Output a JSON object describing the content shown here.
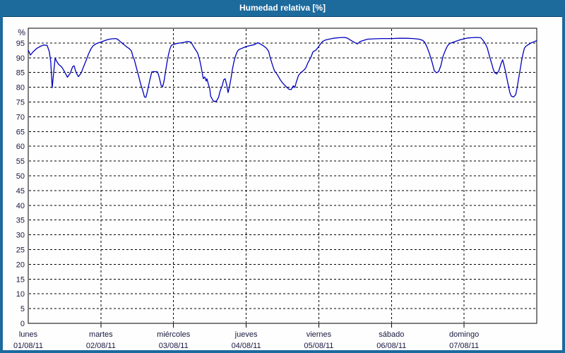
{
  "window": {
    "title": "Humedad relativa [%]"
  },
  "colors": {
    "titlebar_bg": "#1D6A9D",
    "frame": "#1D6A9D",
    "line": "#0000BE",
    "grid": "#000000",
    "axis": "#000000",
    "tick_label": "#17173F",
    "plot_bg": "#FEFEFE",
    "title_text": "#FFFFFF"
  },
  "chart_data": {
    "type": "line",
    "title": "Humedad relativa [%]",
    "ylabel": "%",
    "xlabel": "",
    "ylim": [
      0,
      100
    ],
    "ytick_step": 5,
    "ytick_max_labeled": 95,
    "xlim_days": [
      0,
      7
    ],
    "grid": "dashed",
    "legend_position": "none",
    "x_categories": [
      {
        "weekday": "lunes",
        "date": "01/08/11"
      },
      {
        "weekday": "martes",
        "date": "02/08/11"
      },
      {
        "weekday": "miércoles",
        "date": "03/08/11"
      },
      {
        "weekday": "jueves",
        "date": "04/08/11"
      },
      {
        "weekday": "viernes",
        "date": "05/08/11"
      },
      {
        "weekday": "sábado",
        "date": "06/08/11"
      },
      {
        "weekday": "domingo",
        "date": "07/08/11"
      }
    ],
    "series": [
      {
        "name": "Humedad relativa",
        "color": "#0000BE",
        "points": [
          [
            0.0,
            92.6
          ],
          [
            0.03,
            90.9
          ],
          [
            0.07,
            92.1
          ],
          [
            0.12,
            93.2
          ],
          [
            0.17,
            93.9
          ],
          [
            0.21,
            94.3
          ],
          [
            0.26,
            94.2
          ],
          [
            0.29,
            92.1
          ],
          [
            0.31,
            88.5
          ],
          [
            0.33,
            79.8
          ],
          [
            0.35,
            85.0
          ],
          [
            0.37,
            89.9
          ],
          [
            0.39,
            88.8
          ],
          [
            0.42,
            87.7
          ],
          [
            0.46,
            86.9
          ],
          [
            0.49,
            85.7
          ],
          [
            0.52,
            84.3
          ],
          [
            0.54,
            83.4
          ],
          [
            0.58,
            84.9
          ],
          [
            0.61,
            86.9
          ],
          [
            0.63,
            87.3
          ],
          [
            0.66,
            84.9
          ],
          [
            0.69,
            83.6
          ],
          [
            0.73,
            84.9
          ],
          [
            0.76,
            86.9
          ],
          [
            0.8,
            89.3
          ],
          [
            0.83,
            91.3
          ],
          [
            0.86,
            92.9
          ],
          [
            0.89,
            94.0
          ],
          [
            0.93,
            94.7
          ],
          [
            0.97,
            95.1
          ],
          [
            1.0,
            95.3
          ],
          [
            1.05,
            95.8
          ],
          [
            1.1,
            96.2
          ],
          [
            1.15,
            96.4
          ],
          [
            1.2,
            96.5
          ],
          [
            1.23,
            96.3
          ],
          [
            1.26,
            95.6
          ],
          [
            1.3,
            94.8
          ],
          [
            1.33,
            94.2
          ],
          [
            1.36,
            93.6
          ],
          [
            1.39,
            93.1
          ],
          [
            1.42,
            92.3
          ],
          [
            1.44,
            90.5
          ],
          [
            1.46,
            89.3
          ],
          [
            1.49,
            86.5
          ],
          [
            1.52,
            83.8
          ],
          [
            1.55,
            80.9
          ],
          [
            1.58,
            78.6
          ],
          [
            1.6,
            76.7
          ],
          [
            1.62,
            76.6
          ],
          [
            1.64,
            78.6
          ],
          [
            1.67,
            82.1
          ],
          [
            1.7,
            85.2
          ],
          [
            1.74,
            85.3
          ],
          [
            1.78,
            85.2
          ],
          [
            1.8,
            83.7
          ],
          [
            1.83,
            80.6
          ],
          [
            1.85,
            80.2
          ],
          [
            1.87,
            82.1
          ],
          [
            1.89,
            85.3
          ],
          [
            1.91,
            88.5
          ],
          [
            1.93,
            91.0
          ],
          [
            1.95,
            93.0
          ],
          [
            1.97,
            94.2
          ],
          [
            2.0,
            94.5
          ],
          [
            2.04,
            94.8
          ],
          [
            2.09,
            95.0
          ],
          [
            2.14,
            95.2
          ],
          [
            2.19,
            95.5
          ],
          [
            2.24,
            95.3
          ],
          [
            2.27,
            94.0
          ],
          [
            2.3,
            92.8
          ],
          [
            2.33,
            91.7
          ],
          [
            2.36,
            89.3
          ],
          [
            2.38,
            86.9
          ],
          [
            2.4,
            84.1
          ],
          [
            2.41,
            82.9
          ],
          [
            2.43,
            83.5
          ],
          [
            2.45,
            82.1
          ],
          [
            2.46,
            82.9
          ],
          [
            2.48,
            81.0
          ],
          [
            2.5,
            79.4
          ],
          [
            2.51,
            77.0
          ],
          [
            2.54,
            75.6
          ],
          [
            2.56,
            75.2
          ],
          [
            2.59,
            75.3
          ],
          [
            2.62,
            76.6
          ],
          [
            2.64,
            78.6
          ],
          [
            2.67,
            80.5
          ],
          [
            2.69,
            82.5
          ],
          [
            2.71,
            82.9
          ],
          [
            2.73,
            81.0
          ],
          [
            2.75,
            78.2
          ],
          [
            2.77,
            80.2
          ],
          [
            2.79,
            82.9
          ],
          [
            2.81,
            86.0
          ],
          [
            2.83,
            88.5
          ],
          [
            2.85,
            90.3
          ],
          [
            2.87,
            91.7
          ],
          [
            2.89,
            92.6
          ],
          [
            2.92,
            93.0
          ],
          [
            2.96,
            93.4
          ],
          [
            3.0,
            93.8
          ],
          [
            3.03,
            94.0
          ],
          [
            3.07,
            94.2
          ],
          [
            3.11,
            94.4
          ],
          [
            3.16,
            95.1
          ],
          [
            3.2,
            94.6
          ],
          [
            3.24,
            94.0
          ],
          [
            3.28,
            93.2
          ],
          [
            3.31,
            92.1
          ],
          [
            3.33,
            90.1
          ],
          [
            3.36,
            87.7
          ],
          [
            3.39,
            85.5
          ],
          [
            3.41,
            85.0
          ],
          [
            3.44,
            83.8
          ],
          [
            3.47,
            82.5
          ],
          [
            3.5,
            81.5
          ],
          [
            3.53,
            80.7
          ],
          [
            3.56,
            80.0
          ],
          [
            3.59,
            79.3
          ],
          [
            3.62,
            79.2
          ],
          [
            3.65,
            80.5
          ],
          [
            3.67,
            79.9
          ],
          [
            3.69,
            81.7
          ],
          [
            3.72,
            84.0
          ],
          [
            3.75,
            84.9
          ],
          [
            3.79,
            85.7
          ],
          [
            3.82,
            86.5
          ],
          [
            3.85,
            88.3
          ],
          [
            3.89,
            90.1
          ],
          [
            3.92,
            92.0
          ],
          [
            3.96,
            92.6
          ],
          [
            3.99,
            93.5
          ],
          [
            4.02,
            94.6
          ],
          [
            4.05,
            95.5
          ],
          [
            4.09,
            96.0
          ],
          [
            4.14,
            96.3
          ],
          [
            4.2,
            96.6
          ],
          [
            4.28,
            96.8
          ],
          [
            4.35,
            96.9
          ],
          [
            4.39,
            96.7
          ],
          [
            4.44,
            95.9
          ],
          [
            4.49,
            95.2
          ],
          [
            4.53,
            94.7
          ],
          [
            4.57,
            95.5
          ],
          [
            4.62,
            95.9
          ],
          [
            4.67,
            96.3
          ],
          [
            4.76,
            96.4
          ],
          [
            4.86,
            96.5
          ],
          [
            4.96,
            96.5
          ],
          [
            5.0,
            96.5
          ],
          [
            5.11,
            96.6
          ],
          [
            5.2,
            96.6
          ],
          [
            5.3,
            96.5
          ],
          [
            5.38,
            96.3
          ],
          [
            5.43,
            95.9
          ],
          [
            5.46,
            95.2
          ],
          [
            5.49,
            93.6
          ],
          [
            5.52,
            91.6
          ],
          [
            5.56,
            88.4
          ],
          [
            5.59,
            85.6
          ],
          [
            5.62,
            84.9
          ],
          [
            5.65,
            85.3
          ],
          [
            5.68,
            87.3
          ],
          [
            5.71,
            90.5
          ],
          [
            5.74,
            92.4
          ],
          [
            5.77,
            94.0
          ],
          [
            5.8,
            94.8
          ],
          [
            5.84,
            95.2
          ],
          [
            5.9,
            95.7
          ],
          [
            5.95,
            96.1
          ],
          [
            6.0,
            96.4
          ],
          [
            6.05,
            96.7
          ],
          [
            6.11,
            96.8
          ],
          [
            6.17,
            96.9
          ],
          [
            6.23,
            96.8
          ],
          [
            6.27,
            95.6
          ],
          [
            6.3,
            94.4
          ],
          [
            6.32,
            93.2
          ],
          [
            6.35,
            90.5
          ],
          [
            6.38,
            88.0
          ],
          [
            6.4,
            86.2
          ],
          [
            6.42,
            85.0
          ],
          [
            6.45,
            84.5
          ],
          [
            6.48,
            85.7
          ],
          [
            6.51,
            88.1
          ],
          [
            6.53,
            89.3
          ],
          [
            6.55,
            87.5
          ],
          [
            6.57,
            85.3
          ],
          [
            6.59,
            82.9
          ],
          [
            6.61,
            80.5
          ],
          [
            6.63,
            78.2
          ],
          [
            6.65,
            77.0
          ],
          [
            6.68,
            76.7
          ],
          [
            6.71,
            77.5
          ],
          [
            6.73,
            79.8
          ],
          [
            6.75,
            82.9
          ],
          [
            6.77,
            85.7
          ],
          [
            6.79,
            88.8
          ],
          [
            6.81,
            91.3
          ],
          [
            6.83,
            93.2
          ],
          [
            6.85,
            93.9
          ],
          [
            6.88,
            94.4
          ],
          [
            6.92,
            95.0
          ],
          [
            6.96,
            95.4
          ],
          [
            7.0,
            95.8
          ]
        ]
      }
    ]
  }
}
